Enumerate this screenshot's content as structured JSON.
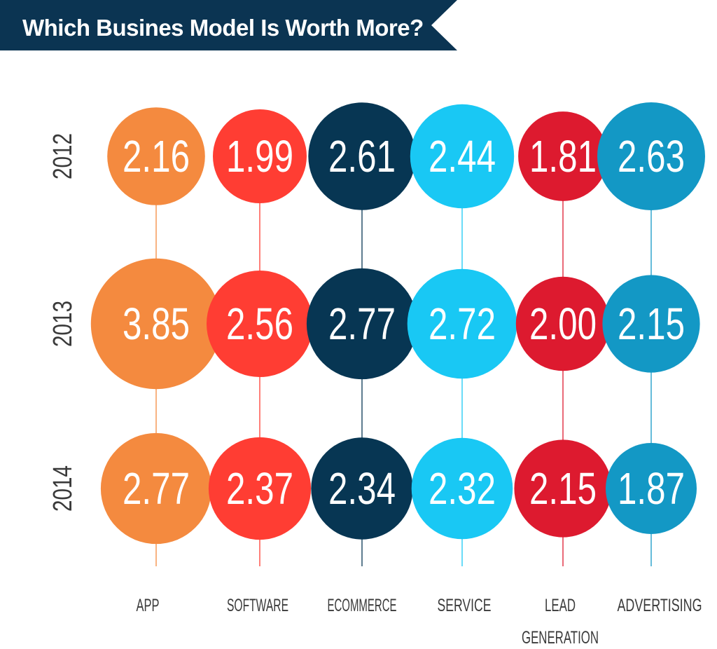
{
  "colors": {
    "banner": "#0b3452",
    "background": "#ffffff",
    "text_dark": "#3a3a3a",
    "value_text": "#ffffff"
  },
  "chart_data": {
    "type": "bubble",
    "title": "Which Busines Model Is Worth More?",
    "categories": [
      "APP",
      "SOFTWARE",
      "ECOMMERCE",
      "SERVICE",
      "LEAD GENERATION",
      "ADVERTISING"
    ],
    "category_colors": [
      "#f48a3f",
      "#ff3d33",
      "#073653",
      "#19c8f4",
      "#dd1a2f",
      "#1398c5"
    ],
    "series": [
      {
        "name": "2012",
        "values": [
          2.16,
          1.99,
          2.61,
          2.44,
          1.81,
          2.63
        ],
        "labels": [
          "2.16",
          "1.99",
          "2.61",
          "2.44",
          "1.81",
          "2.63"
        ]
      },
      {
        "name": "2013",
        "values": [
          3.85,
          2.56,
          2.77,
          2.72,
          2.0,
          2.15
        ],
        "labels": [
          "3.85",
          "2.56",
          "2.77",
          "2.72",
          "2.00",
          "2.15"
        ]
      },
      {
        "name": "2014",
        "values": [
          2.77,
          2.37,
          2.34,
          2.32,
          2.15,
          1.87
        ],
        "labels": [
          "2.77",
          "2.37",
          "2.34",
          "2.32",
          "2.15",
          "1.87"
        ]
      }
    ]
  }
}
